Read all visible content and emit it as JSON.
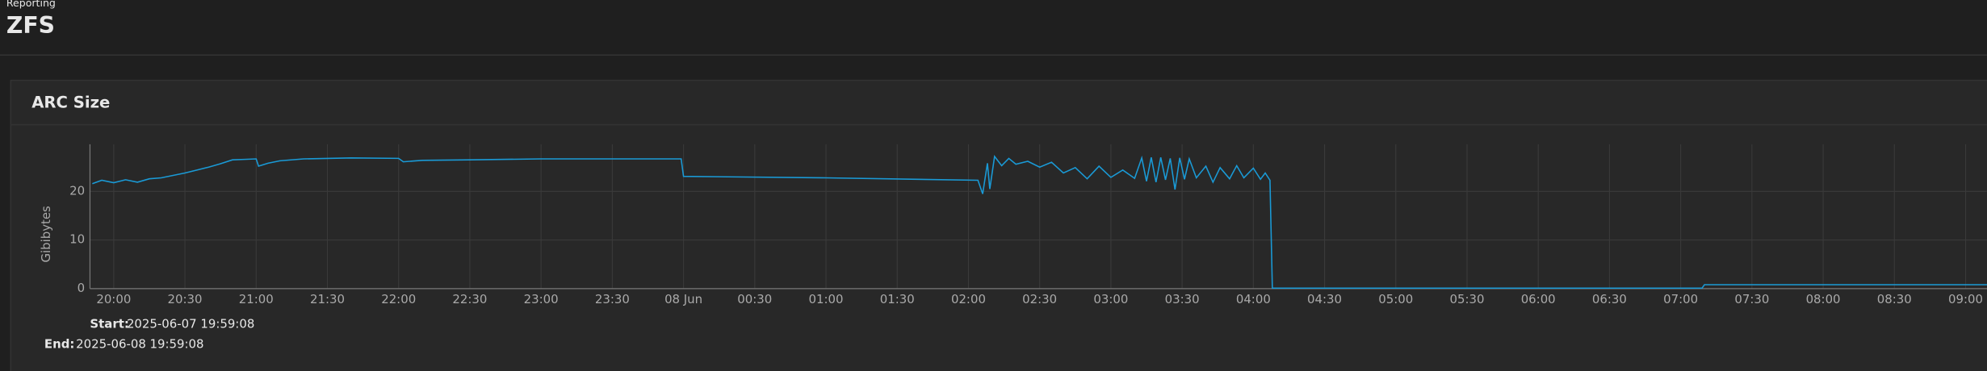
{
  "header": {
    "subtitle": "Reporting",
    "title": "ZFS"
  },
  "chart_data": {
    "type": "line",
    "title": "ARC Size",
    "y_label": "Gibibytes",
    "color": "#1a9ad6",
    "grid": true,
    "x": [
      "2025-06-07T19:51",
      "2025-06-07T19:55",
      "2025-06-07T20:00",
      "2025-06-07T20:05",
      "2025-06-07T20:10",
      "2025-06-07T20:15",
      "2025-06-07T20:20",
      "2025-06-07T20:25",
      "2025-06-07T20:30",
      "2025-06-07T20:35",
      "2025-06-07T20:40",
      "2025-06-07T20:45",
      "2025-06-07T20:50",
      "2025-06-07T20:55",
      "2025-06-07T21:00",
      "2025-06-07T21:01",
      "2025-06-07T21:05",
      "2025-06-07T21:10",
      "2025-06-07T21:20",
      "2025-06-07T21:40",
      "2025-06-07T22:00",
      "2025-06-07T22:02",
      "2025-06-07T22:10",
      "2025-06-07T22:30",
      "2025-06-07T23:00",
      "2025-06-07T23:59",
      "2025-06-08T00:00",
      "2025-06-08T01:00",
      "2025-06-08T02:04",
      "2025-06-08T02:06",
      "2025-06-08T02:08",
      "2025-06-08T02:09",
      "2025-06-08T02:11",
      "2025-06-08T02:14",
      "2025-06-08T02:17",
      "2025-06-08T02:20",
      "2025-06-08T02:25",
      "2025-06-08T02:30",
      "2025-06-08T02:35",
      "2025-06-08T02:40",
      "2025-06-08T02:45",
      "2025-06-08T02:50",
      "2025-06-08T02:55",
      "2025-06-08T03:00",
      "2025-06-08T03:05",
      "2025-06-08T03:10",
      "2025-06-08T03:13",
      "2025-06-08T03:15",
      "2025-06-08T03:17",
      "2025-06-08T03:19",
      "2025-06-08T03:21",
      "2025-06-08T03:23",
      "2025-06-08T03:25",
      "2025-06-08T03:27",
      "2025-06-08T03:29",
      "2025-06-08T03:31",
      "2025-06-08T03:33",
      "2025-06-08T03:36",
      "2025-06-08T03:40",
      "2025-06-08T03:43",
      "2025-06-08T03:46",
      "2025-06-08T03:50",
      "2025-06-08T03:53",
      "2025-06-08T03:56",
      "2025-06-08T04:00",
      "2025-06-08T04:03",
      "2025-06-08T04:05",
      "2025-06-08T04:07",
      "2025-06-08T04:08",
      "2025-06-08T05:00",
      "2025-06-08T07:09",
      "2025-06-08T07:10",
      "2025-06-08T09:09"
    ],
    "values": [
      21.6,
      22.3,
      21.8,
      22.4,
      21.9,
      22.6,
      22.8,
      23.3,
      23.8,
      24.4,
      25.0,
      25.7,
      26.5,
      26.6,
      26.7,
      25.2,
      25.8,
      26.3,
      26.7,
      26.9,
      26.8,
      26.1,
      26.4,
      26.5,
      26.7,
      26.7,
      23.1,
      22.8,
      22.3,
      19.5,
      25.8,
      20.5,
      27.2,
      25.3,
      26.8,
      25.6,
      26.2,
      25.0,
      26.0,
      23.8,
      24.9,
      22.6,
      25.2,
      22.9,
      24.4,
      22.7,
      26.9,
      22.1,
      27.0,
      21.9,
      27.0,
      22.4,
      26.8,
      20.4,
      26.9,
      22.5,
      26.7,
      22.8,
      25.2,
      21.9,
      24.9,
      22.6,
      25.3,
      22.8,
      24.8,
      22.5,
      23.8,
      22.3,
      0.1,
      0.1,
      0.1,
      0.8,
      0.8
    ],
    "xlim": [
      "2025-06-07T19:50",
      "2025-06-08T09:09"
    ],
    "ylim": [
      0,
      29.7
    ],
    "yticks": [
      0,
      10,
      20
    ],
    "xticks": [
      {
        "value": "2025-06-07T20:00",
        "label": "20:00"
      },
      {
        "value": "2025-06-07T20:30",
        "label": "20:30"
      },
      {
        "value": "2025-06-07T21:00",
        "label": "21:00"
      },
      {
        "value": "2025-06-07T21:30",
        "label": "21:30"
      },
      {
        "value": "2025-06-07T22:00",
        "label": "22:00"
      },
      {
        "value": "2025-06-07T22:30",
        "label": "22:30"
      },
      {
        "value": "2025-06-07T23:00",
        "label": "23:00"
      },
      {
        "value": "2025-06-07T23:30",
        "label": "23:30"
      },
      {
        "value": "2025-06-08T00:00",
        "label": "08 Jun"
      },
      {
        "value": "2025-06-08T00:30",
        "label": "00:30"
      },
      {
        "value": "2025-06-08T01:00",
        "label": "01:00"
      },
      {
        "value": "2025-06-08T01:30",
        "label": "01:30"
      },
      {
        "value": "2025-06-08T02:00",
        "label": "02:00"
      },
      {
        "value": "2025-06-08T02:30",
        "label": "02:30"
      },
      {
        "value": "2025-06-08T03:00",
        "label": "03:00"
      },
      {
        "value": "2025-06-08T03:30",
        "label": "03:30"
      },
      {
        "value": "2025-06-08T04:00",
        "label": "04:00"
      },
      {
        "value": "2025-06-08T04:30",
        "label": "04:30"
      },
      {
        "value": "2025-06-08T05:00",
        "label": "05:00"
      },
      {
        "value": "2025-06-08T05:30",
        "label": "05:30"
      },
      {
        "value": "2025-06-08T06:00",
        "label": "06:00"
      },
      {
        "value": "2025-06-08T06:30",
        "label": "06:30"
      },
      {
        "value": "2025-06-08T07:00",
        "label": "07:00"
      },
      {
        "value": "2025-06-08T07:30",
        "label": "07:30"
      },
      {
        "value": "2025-06-08T08:00",
        "label": "08:00"
      },
      {
        "value": "2025-06-08T08:30",
        "label": "08:30"
      },
      {
        "value": "2025-06-08T09:00",
        "label": "09:00"
      }
    ]
  },
  "range": {
    "start_label": "Start:",
    "start_value": "2025-06-07 19:59:08",
    "end_label": "End:",
    "end_value": "2025-06-08 19:59:08"
  }
}
